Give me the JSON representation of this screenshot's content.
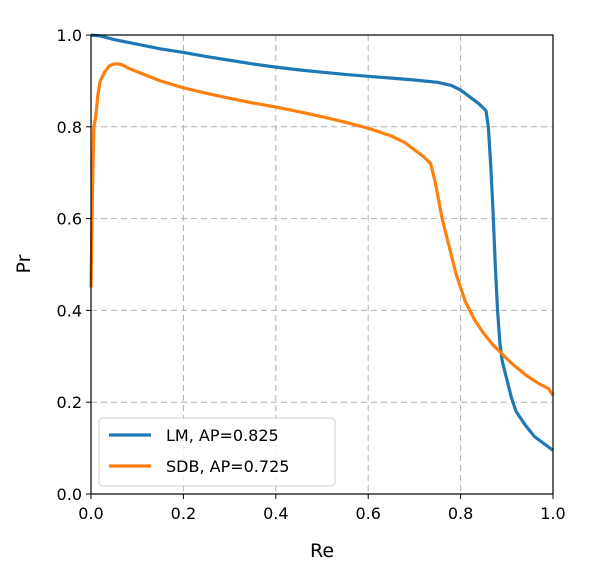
{
  "chart_data": {
    "type": "line",
    "xlabel": "Re",
    "ylabel": "Pr",
    "xlim": [
      0.0,
      1.0
    ],
    "ylim": [
      0.0,
      1.0
    ],
    "xticks": [
      "0.0",
      "0.2",
      "0.4",
      "0.6",
      "0.8",
      "1.0"
    ],
    "yticks": [
      "0.0",
      "0.2",
      "0.4",
      "0.6",
      "0.8",
      "1.0"
    ],
    "grid": true,
    "legend_position": "lower-left",
    "series": [
      {
        "name": "LM, AP=0.825",
        "color": "#1f77b4",
        "points": [
          [
            0.0,
            1.0
          ],
          [
            0.02,
            0.998
          ],
          [
            0.05,
            0.99
          ],
          [
            0.1,
            0.98
          ],
          [
            0.15,
            0.97
          ],
          [
            0.2,
            0.962
          ],
          [
            0.25,
            0.953
          ],
          [
            0.3,
            0.945
          ],
          [
            0.35,
            0.937
          ],
          [
            0.4,
            0.93
          ],
          [
            0.45,
            0.924
          ],
          [
            0.5,
            0.919
          ],
          [
            0.55,
            0.914
          ],
          [
            0.6,
            0.91
          ],
          [
            0.65,
            0.906
          ],
          [
            0.7,
            0.902
          ],
          [
            0.75,
            0.897
          ],
          [
            0.78,
            0.89
          ],
          [
            0.8,
            0.88
          ],
          [
            0.82,
            0.865
          ],
          [
            0.84,
            0.85
          ],
          [
            0.855,
            0.835
          ],
          [
            0.86,
            0.8
          ],
          [
            0.865,
            0.72
          ],
          [
            0.87,
            0.62
          ],
          [
            0.875,
            0.5
          ],
          [
            0.88,
            0.4
          ],
          [
            0.885,
            0.33
          ],
          [
            0.89,
            0.29
          ],
          [
            0.9,
            0.25
          ],
          [
            0.91,
            0.21
          ],
          [
            0.92,
            0.18
          ],
          [
            0.94,
            0.15
          ],
          [
            0.96,
            0.125
          ],
          [
            0.98,
            0.11
          ],
          [
            1.0,
            0.095
          ]
        ]
      },
      {
        "name": "SDB, AP=0.725",
        "color": "#ff7f0e",
        "points": [
          [
            0.0,
            0.45
          ],
          [
            0.003,
            0.65
          ],
          [
            0.006,
            0.8
          ],
          [
            0.01,
            0.82
          ],
          [
            0.015,
            0.87
          ],
          [
            0.02,
            0.9
          ],
          [
            0.03,
            0.92
          ],
          [
            0.04,
            0.933
          ],
          [
            0.05,
            0.937
          ],
          [
            0.06,
            0.937
          ],
          [
            0.07,
            0.934
          ],
          [
            0.08,
            0.928
          ],
          [
            0.1,
            0.92
          ],
          [
            0.15,
            0.9
          ],
          [
            0.2,
            0.885
          ],
          [
            0.25,
            0.873
          ],
          [
            0.3,
            0.862
          ],
          [
            0.35,
            0.852
          ],
          [
            0.4,
            0.843
          ],
          [
            0.45,
            0.833
          ],
          [
            0.5,
            0.822
          ],
          [
            0.55,
            0.81
          ],
          [
            0.6,
            0.797
          ],
          [
            0.65,
            0.78
          ],
          [
            0.68,
            0.765
          ],
          [
            0.7,
            0.75
          ],
          [
            0.72,
            0.735
          ],
          [
            0.735,
            0.72
          ],
          [
            0.745,
            0.68
          ],
          [
            0.76,
            0.6
          ],
          [
            0.775,
            0.54
          ],
          [
            0.79,
            0.48
          ],
          [
            0.81,
            0.42
          ],
          [
            0.83,
            0.38
          ],
          [
            0.85,
            0.35
          ],
          [
            0.87,
            0.325
          ],
          [
            0.89,
            0.305
          ],
          [
            0.91,
            0.285
          ],
          [
            0.94,
            0.26
          ],
          [
            0.97,
            0.24
          ],
          [
            0.99,
            0.23
          ],
          [
            1.0,
            0.215
          ]
        ]
      }
    ]
  }
}
